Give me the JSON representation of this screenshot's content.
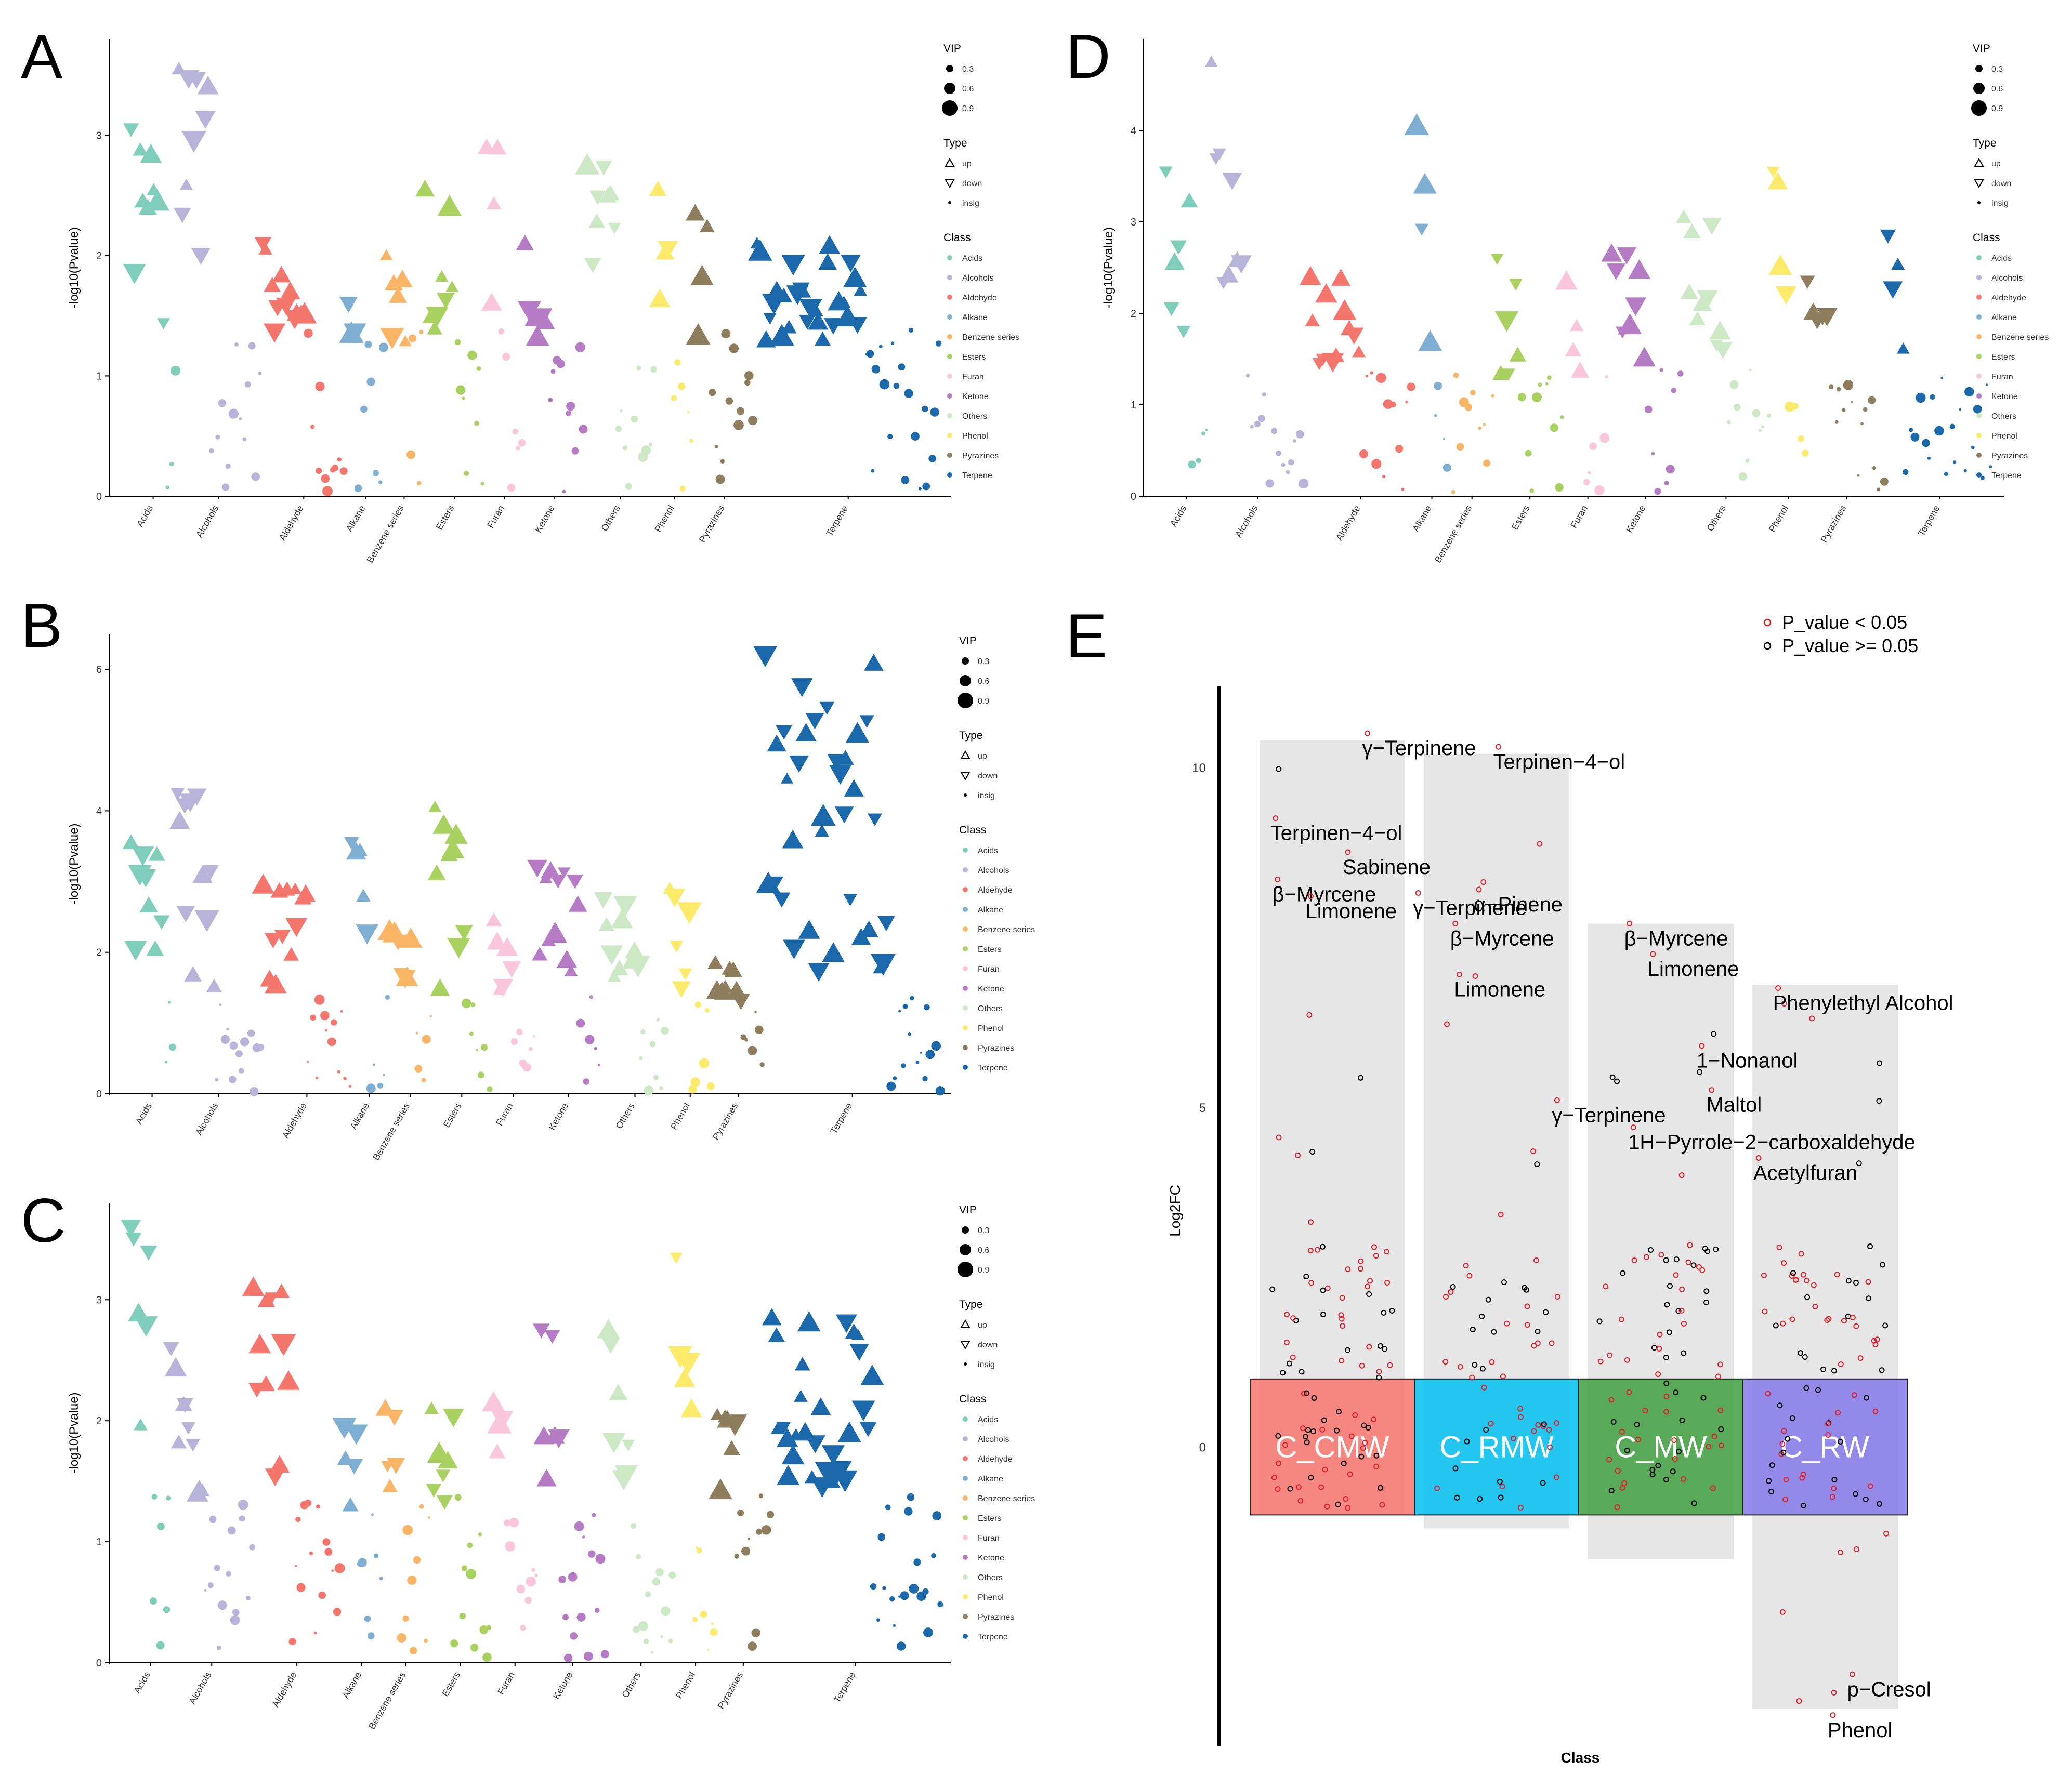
{
  "figure_labels": {
    "a": "A",
    "b": "B",
    "c": "C",
    "d": "D",
    "e": "E"
  },
  "legend_titles": {
    "vip": "VIP",
    "type": "Type",
    "class": "Class"
  },
  "vip_levels": [
    "0.3",
    "0.6",
    "0.9"
  ],
  "type_levels": [
    "up",
    "down",
    "insig"
  ],
  "class_names": [
    "Acids",
    "Alcohols",
    "Aldehyde",
    "Alkane",
    "Benzene series",
    "Esters",
    "Furan",
    "Ketone",
    "Others",
    "Phenol",
    "Pyrazines",
    "Terpene"
  ],
  "class_colors": {
    "Acids": "#7FCDBB",
    "Alcohols": "#B8B3D8",
    "Aldehyde": "#F5766D",
    "Alkane": "#7FAED3",
    "Benzene series": "#F9B466",
    "Esters": "#A8D160",
    "Furan": "#F9C6DC",
    "Ketone": "#B57BC4",
    "Others": "#CDE8C5",
    "Phenol": "#FCEB6B",
    "Pyrazines": "#8E7E5E",
    "Terpene": "#1B69AA"
  },
  "chart_data": [
    {
      "id": "A",
      "type": "scatter",
      "ylabel": "-log10(Pvalue)",
      "ylim": [
        0,
        3.8
      ],
      "yticks": [
        0,
        1,
        2,
        3
      ],
      "categories": [
        "Acids",
        "Alcohols",
        "Aldehyde",
        "Alkane",
        "Benzene series",
        "Esters",
        "Furan",
        "Ketone",
        "Others",
        "Phenol",
        "Pyrazines",
        "Terpene"
      ],
      "xlabels": [
        "Acids",
        "Alcohols",
        "Aldehyde",
        "Alkane",
        "Benzene series",
        "Esters",
        "Furan",
        "Ketone",
        "Others",
        "Phenol",
        "Pyrazines",
        "Terpene"
      ],
      "counts": [
        12,
        22,
        22,
        10,
        10,
        16,
        10,
        16,
        18,
        10,
        16,
        48
      ],
      "sig_counts": [
        9,
        9,
        12,
        3,
        6,
        8,
        4,
        6,
        8,
        4,
        4,
        28
      ],
      "max_y": [
        3.05,
        3.55,
        2.1,
        1.6,
        2.0,
        2.55,
        2.9,
        2.1,
        2.75,
        2.55,
        2.35,
        2.1
      ],
      "seed": 11
    },
    {
      "id": "B",
      "type": "scatter",
      "ylabel": "-log10(Pvalue)",
      "ylim": [
        0,
        6.5
      ],
      "yticks": [
        0,
        2,
        4,
        6
      ],
      "categories": [
        "Acids",
        "Alcohols",
        "Aldehyde",
        "Alkane",
        "Benzene series",
        "Esters",
        "Furan",
        "Ketone",
        "Others",
        "Phenol",
        "Pyrazines",
        "Terpene"
      ],
      "xlabels": [
        "Acids",
        "Alcohols",
        "Aldehyde",
        "Alkane",
        "Benzene series",
        "Esters",
        "Furan",
        "Ketone",
        "Others",
        "Phenol",
        "Pyrazines",
        "Terpene"
      ],
      "counts": [
        12,
        24,
        24,
        10,
        12,
        16,
        12,
        18,
        18,
        12,
        14,
        48
      ],
      "sig_counts": [
        9,
        11,
        12,
        5,
        7,
        9,
        6,
        12,
        10,
        6,
        8,
        34
      ],
      "max_y": [
        3.55,
        4.25,
        2.95,
        3.55,
        2.3,
        4.05,
        2.45,
        3.2,
        2.75,
        2.9,
        1.85,
        6.2
      ],
      "seed": 23
    },
    {
      "id": "C",
      "type": "scatter",
      "ylabel": "-log10(Pvalue)",
      "ylim": [
        0,
        3.8
      ],
      "yticks": [
        0,
        1,
        2,
        3
      ],
      "categories": [
        "Acids",
        "Alcohols",
        "Aldehyde",
        "Alkane",
        "Benzene series",
        "Esters",
        "Furan",
        "Ketone",
        "Others",
        "Phenol",
        "Pyrazines",
        "Terpene"
      ],
      "xlabels": [
        "Acids",
        "Alcohols",
        "Aldehyde",
        "Alkane",
        "Benzene series",
        "Esters",
        "Furan",
        "Ketone",
        "Others",
        "Phenol",
        "Pyrazines",
        "Terpene"
      ],
      "counts": [
        12,
        24,
        26,
        12,
        14,
        18,
        14,
        20,
        20,
        12,
        16,
        50
      ],
      "sig_counts": [
        6,
        10,
        11,
        5,
        5,
        7,
        4,
        6,
        7,
        5,
        6,
        30
      ],
      "max_y": [
        3.6,
        2.6,
        3.1,
        1.95,
        2.1,
        2.1,
        2.15,
        2.75,
        2.75,
        3.35,
        2.05,
        2.85
      ],
      "seed": 37
    },
    {
      "id": "D",
      "type": "scatter",
      "ylabel": "-log10(Pvalue)",
      "ylim": [
        0,
        5.0
      ],
      "yticks": [
        0,
        1,
        2,
        3,
        4
      ],
      "categories": [
        "Acids",
        "Alcohols",
        "Aldehyde",
        "Alkane",
        "Benzene series",
        "Esters",
        "Furan",
        "Ketone",
        "Others",
        "Phenol",
        "Pyrazines",
        "Terpene"
      ],
      "xlabels": [
        "Acids",
        "Alcohols",
        "Aldehyde",
        "Alkane",
        "Benzene series",
        "Esters",
        "Furan",
        "Ketone",
        "Others",
        "Phenol",
        "Pyrazines",
        "Terpene"
      ],
      "counts": [
        10,
        22,
        24,
        8,
        10,
        16,
        10,
        16,
        20,
        8,
        18,
        24
      ],
      "sig_counts": [
        6,
        8,
        12,
        4,
        0,
        6,
        4,
        8,
        10,
        4,
        5,
        4
      ],
      "max_y": [
        3.55,
        4.75,
        2.4,
        4.05,
        1.6,
        2.6,
        2.35,
        2.65,
        3.05,
        3.55,
        2.35,
        2.85
      ],
      "seed": 53
    },
    {
      "id": "E",
      "type": "scatter",
      "xlabel": "Class",
      "ylabel": "Log2FC",
      "ylim": [
        -4.4,
        11.2
      ],
      "yticks": [
        0,
        5,
        10
      ],
      "groups": [
        "C_CMW",
        "C_RMW",
        "C_MW",
        "C_RW"
      ],
      "group_colors": [
        "#F8766D",
        "#00BFEF",
        "#3E9F3E",
        "#8378E8"
      ],
      "group_ranges": [
        [
          -1.0,
          10.4
        ],
        [
          -1.2,
          10.2
        ],
        [
          -1.65,
          7.7
        ],
        [
          -3.85,
          6.8
        ]
      ],
      "counts": [
        90,
        60,
        80,
        85
      ],
      "legend": [
        "P_value < 0.05",
        "P_value >= 0.05"
      ],
      "legend_colors": [
        "#E0202A",
        "#000000"
      ],
      "annotations": [
        {
          "group": 0,
          "x": 0.52,
          "y": 10.35,
          "text": "γ−Terpinene"
        },
        {
          "group": 0,
          "x": 0.05,
          "y": 9.1,
          "text": "Terpinen−4−ol"
        },
        {
          "group": 0,
          "x": 0.42,
          "y": 8.6,
          "text": "Sabinene"
        },
        {
          "group": 0,
          "x": 0.06,
          "y": 8.2,
          "text": "β−Myrcene"
        },
        {
          "group": 0,
          "x": 0.23,
          "y": 7.95,
          "text": "Limonene"
        },
        {
          "group": 1,
          "x": 0.35,
          "y": 10.15,
          "text": "Terpinen−4−ol"
        },
        {
          "group": 0,
          "x": 0.78,
          "y": 8.0,
          "text": "γ−Terpinene"
        },
        {
          "group": 1,
          "x": 0.25,
          "y": 8.05,
          "text": "α−Pinene"
        },
        {
          "group": 0,
          "x": 0.97,
          "y": 7.55,
          "text": "β−Myrcene"
        },
        {
          "group": 1,
          "x": 0.15,
          "y": 6.8,
          "text": "Limonene"
        },
        {
          "group": 2,
          "x": 0.18,
          "y": 7.55,
          "text": "β−Myrcene"
        },
        {
          "group": 2,
          "x": 0.3,
          "y": 7.1,
          "text": "Limonene"
        },
        {
          "group": 3,
          "x": 0.1,
          "y": 6.6,
          "text": "Phenylethyl Alcohol"
        },
        {
          "group": 2,
          "x": 0.55,
          "y": 5.75,
          "text": "1−Nonanol"
        },
        {
          "group": 1,
          "x": 0.65,
          "y": 4.95,
          "text": "γ−Terpinene"
        },
        {
          "group": 2,
          "x": 0.6,
          "y": 5.1,
          "text": "Maltol"
        },
        {
          "group": 2,
          "x": 0.2,
          "y": 4.55,
          "text": "1H−Pyrrole−2−carboxaldehyde"
        },
        {
          "group": 3,
          "x": 0.0,
          "y": 4.1,
          "text": "Acetylfuran"
        },
        {
          "group": 3,
          "x": 0.48,
          "y": -3.5,
          "text": "p−Cresol"
        },
        {
          "group": 3,
          "x": 0.38,
          "y": -4.1,
          "text": "Phenol"
        }
      ],
      "seed": 71
    }
  ]
}
